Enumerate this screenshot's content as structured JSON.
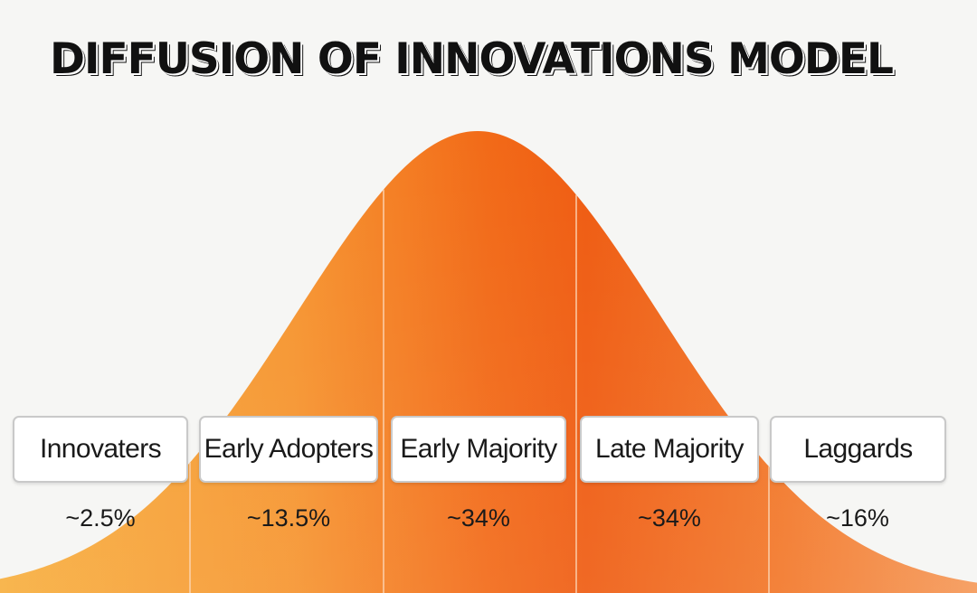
{
  "title": "DIFFUSION OF INNOVATIONS MODEL",
  "colors": {
    "curve_light": "#f6a030",
    "curve_peak": "#f05a10",
    "curve_right": "#f07828",
    "divider": "#fbd7b8",
    "background": "#f6f6f4"
  },
  "segments": [
    {
      "label": "Innovaters",
      "percent": "~2.5%"
    },
    {
      "label": "Early Adopters",
      "percent": "~13.5%"
    },
    {
      "label": "Early Majority",
      "percent": "~34%"
    },
    {
      "label": "Late Majority",
      "percent": "~34%"
    },
    {
      "label": "Laggards",
      "percent": "~16%"
    }
  ]
}
